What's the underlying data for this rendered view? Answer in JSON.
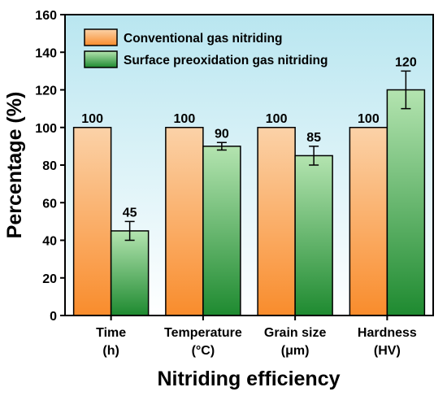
{
  "chart_data": {
    "type": "bar",
    "title": "",
    "xlabel": "Nitriding efficiency",
    "ylabel": "Percentage (%)",
    "ylim": [
      0,
      160
    ],
    "yticks": [
      0,
      20,
      40,
      60,
      80,
      100,
      120,
      140,
      160
    ],
    "categories": [
      [
        "Time",
        "(h)"
      ],
      [
        "Temperature",
        "(°C)"
      ],
      [
        "Grain size",
        "(μm)"
      ],
      [
        "Hardness",
        "(HV)"
      ]
    ],
    "series": [
      {
        "name": "Conventional gas nitriding",
        "values": [
          100,
          100,
          100,
          100
        ],
        "labels": [
          "100",
          "100",
          "100",
          "100"
        ],
        "errors": [
          0,
          0,
          0,
          0
        ],
        "color_top": "#fbd2a8",
        "color_bottom": "#f98c2c"
      },
      {
        "name": "Surface preoxidation gas nitriding",
        "values": [
          45,
          90,
          85,
          120
        ],
        "labels": [
          "45",
          "90",
          "85",
          "120"
        ],
        "errors": [
          5,
          2,
          5,
          10
        ],
        "color_top": "#b4e4b0",
        "color_bottom": "#1e8a30"
      }
    ],
    "legend_position": "top-left",
    "grid": false,
    "background_top": "#b9e6f0",
    "background_bottom": "#ffffff"
  }
}
